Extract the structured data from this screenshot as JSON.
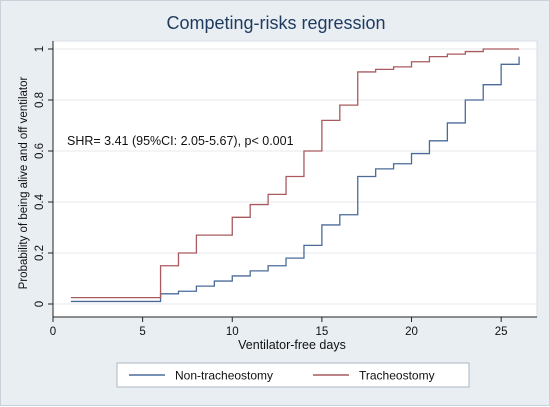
{
  "chart_data": {
    "type": "line",
    "step": true,
    "title": "Competing-risks regression",
    "xlabel": "Ventilator-free days",
    "ylabel": "Probability of being alive and off ventilator",
    "xlim": [
      0,
      27
    ],
    "ylim": [
      0,
      1
    ],
    "xticks": [
      0,
      5,
      10,
      15,
      20,
      25
    ],
    "yticks": [
      0,
      0.2,
      0.4,
      0.6,
      0.8,
      1
    ],
    "ytick_labels": [
      "0",
      "0.2",
      "0.4",
      "0.6",
      "0.8",
      "1"
    ],
    "grid": "horizontal",
    "annotation": "SHR= 3.41 (95%CI: 2.05-5.67), p< 0.001",
    "legend_position": "bottom",
    "series": [
      {
        "name": "Non-tracheostomy",
        "color": "#4a6b9a",
        "x": [
          1,
          6,
          7,
          8,
          9,
          10,
          11,
          12,
          13,
          14,
          15,
          16,
          17,
          18,
          19,
          20,
          21,
          22,
          23,
          24,
          25,
          26
        ],
        "y": [
          0.01,
          0.04,
          0.05,
          0.07,
          0.09,
          0.11,
          0.13,
          0.15,
          0.18,
          0.23,
          0.31,
          0.35,
          0.5,
          0.53,
          0.55,
          0.59,
          0.64,
          0.71,
          0.8,
          0.86,
          0.94,
          0.97
        ]
      },
      {
        "name": "Tracheostomy",
        "color": "#a85a5e",
        "x": [
          1,
          6,
          7,
          8,
          10,
          11,
          12,
          13,
          14,
          15,
          16,
          17,
          18,
          19,
          20,
          21,
          22,
          23,
          24,
          26
        ],
        "y": [
          0.025,
          0.15,
          0.2,
          0.27,
          0.34,
          0.39,
          0.43,
          0.5,
          0.6,
          0.72,
          0.78,
          0.91,
          0.92,
          0.93,
          0.95,
          0.97,
          0.98,
          0.99,
          1.0,
          1.0
        ]
      }
    ]
  }
}
